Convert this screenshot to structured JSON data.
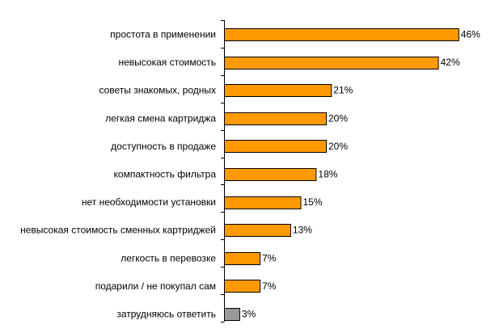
{
  "chart_data": {
    "type": "bar",
    "orientation": "horizontal",
    "categories": [
      "простота в применении",
      "невысокая стоимость",
      "советы знакомых, родных",
      "легкая смена картриджа",
      "доступность в продаже",
      "компактность фильтра",
      "нет необходимости установки",
      "невысокая стоимость сменных картриджей",
      "легкость в перевозке",
      "подарили / не покупал сам",
      "затрудняюсь ответить"
    ],
    "values": [
      46,
      42,
      21,
      20,
      20,
      18,
      15,
      13,
      7,
      7,
      3
    ],
    "value_labels": [
      "46%",
      "42%",
      "21%",
      "20%",
      "20%",
      "18%",
      "15%",
      "13%",
      "7%",
      "7%",
      "3%"
    ],
    "bar_colors": [
      "#FF9900",
      "#FF9900",
      "#FF9900",
      "#FF9900",
      "#FF9900",
      "#FF9900",
      "#FF9900",
      "#FF9900",
      "#FF9900",
      "#FF9900",
      "#999999"
    ],
    "xlim": [
      0,
      50
    ],
    "grid": false,
    "legend": "none"
  }
}
